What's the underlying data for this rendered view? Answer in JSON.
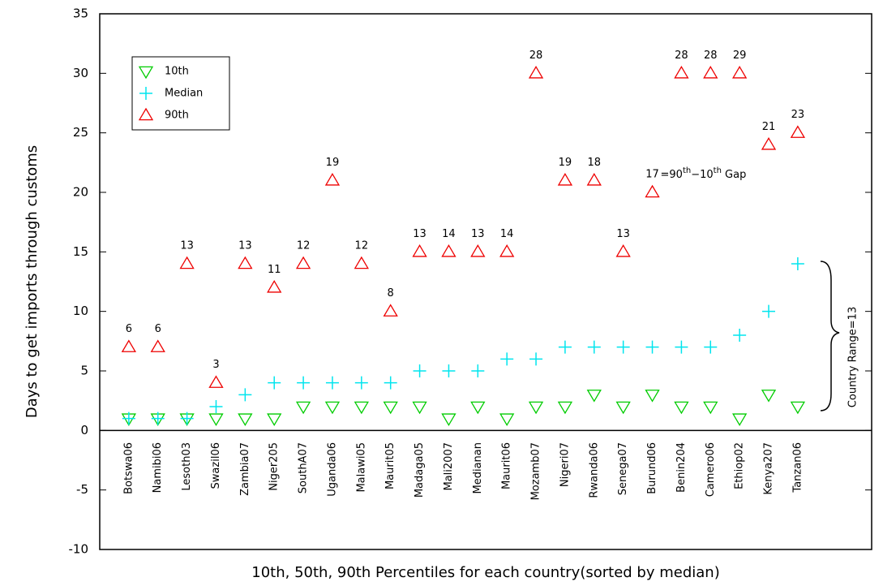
{
  "chart_data": {
    "type": "scatter",
    "y_label": "Days to get imports through customs",
    "x_label": "10th, 50th, 90th Percentiles for each country(sorted by median)",
    "categories": [
      "Botswa06",
      "Namibi06",
      "Lesoth03",
      "Swazil06",
      "Zambia07",
      "Niger205",
      "SouthA07",
      "Uganda06",
      "Malawi05",
      "Maurit05",
      "Madaga05",
      "Mali2007",
      "Medianan",
      "Maurit06",
      "Mozamb07",
      "Nigeri07",
      "Rwanda06",
      "Senega07",
      "Burund06",
      "Benin204",
      "Camero06",
      "Ethiop02",
      "Kenya207",
      "Tanzan06"
    ],
    "series": [
      {
        "name": "10th",
        "color": "#00cc00",
        "marker": "triangle-down",
        "values": [
          1,
          1,
          1,
          1,
          1,
          1,
          2,
          2,
          2,
          2,
          2,
          1,
          2,
          1,
          2,
          2,
          3,
          2,
          3,
          2,
          2,
          1,
          3,
          2
        ]
      },
      {
        "name": "Median",
        "color": "#00e5ee",
        "marker": "plus",
        "values": [
          1,
          1,
          1,
          2,
          3,
          4,
          4,
          4,
          4,
          4,
          5,
          5,
          5,
          6,
          6,
          7,
          7,
          7,
          7,
          7,
          7,
          8,
          10,
          14
        ]
      },
      {
        "name": "90th",
        "color": "#ee0000",
        "marker": "triangle-up",
        "values": [
          7,
          7,
          14,
          4,
          14,
          12,
          14,
          21,
          14,
          10,
          15,
          15,
          15,
          15,
          30,
          21,
          21,
          15,
          20,
          30,
          30,
          30,
          24,
          25
        ]
      }
    ],
    "gaps": [
      6,
      6,
      13,
      3,
      13,
      11,
      12,
      19,
      12,
      8,
      13,
      14,
      13,
      14,
      28,
      19,
      18,
      13,
      17,
      28,
      28,
      29,
      21,
      23
    ],
    "gap_note": [
      "=90",
      "th",
      "−10",
      "th",
      " Gap"
    ],
    "range_note": "Country Range=13",
    "ylim": [
      -10,
      35
    ],
    "yticks": [
      -10,
      -5,
      0,
      5,
      10,
      15,
      20,
      25,
      30,
      35
    ]
  }
}
